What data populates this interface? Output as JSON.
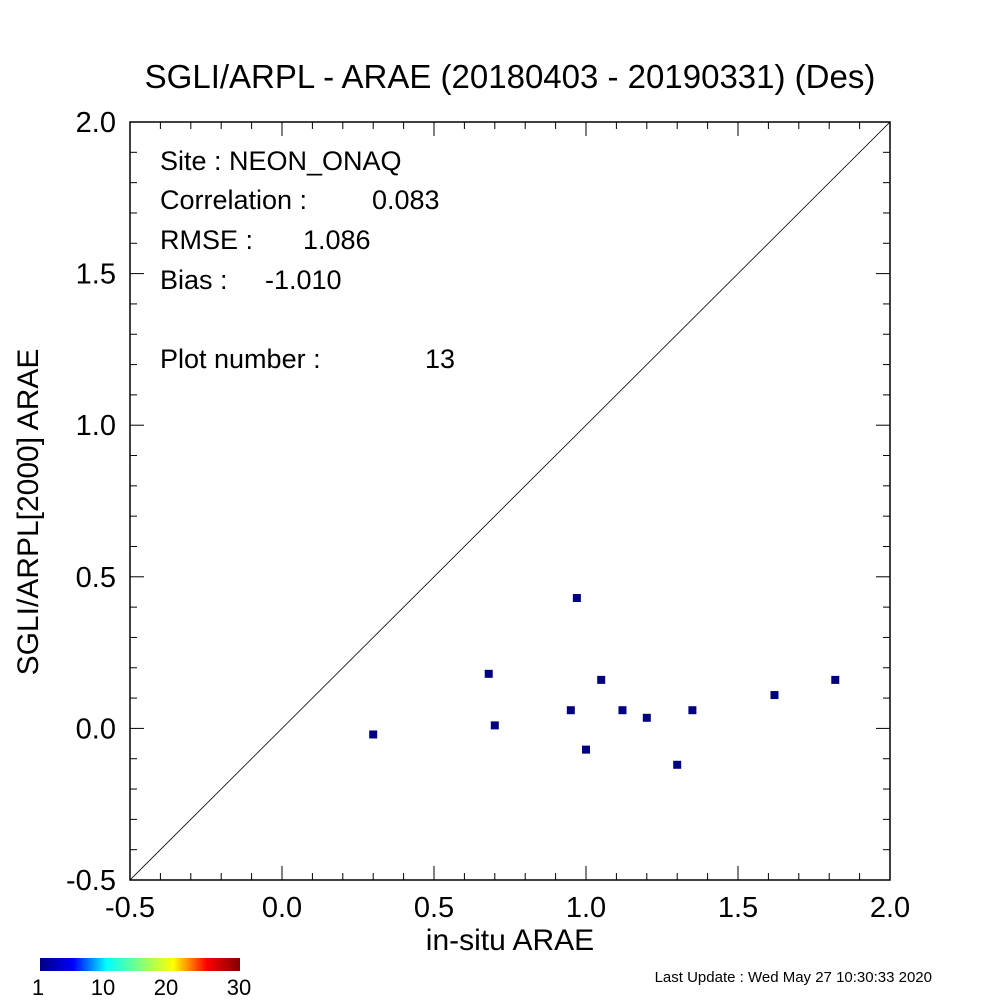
{
  "chart_data": {
    "type": "scatter",
    "title": "SGLI/ARPL - ARAE (20180403 - 20190331) (Des)",
    "xlabel": "in-situ ARAE",
    "ylabel": "SGLI/ARPL[2000]    ARAE",
    "xlim": [
      -0.5,
      2.0
    ],
    "ylim": [
      -0.5,
      2.0
    ],
    "xticks": [
      "-0.5",
      "0.0",
      "0.5",
      "1.0",
      "1.5",
      "2.0"
    ],
    "yticks": [
      "-0.5",
      "0.0",
      "0.5",
      "1.0",
      "1.5",
      "2.0"
    ],
    "reference_line": "1:1",
    "marker_color": "#00007f",
    "points": [
      {
        "x": 0.3,
        "y": -0.02
      },
      {
        "x": 0.68,
        "y": 0.18
      },
      {
        "x": 0.7,
        "y": 0.01
      },
      {
        "x": 0.95,
        "y": 0.06
      },
      {
        "x": 0.97,
        "y": 0.43
      },
      {
        "x": 1.0,
        "y": -0.07
      },
      {
        "x": 1.05,
        "y": 0.16
      },
      {
        "x": 1.12,
        "y": 0.06
      },
      {
        "x": 1.2,
        "y": 0.035
      },
      {
        "x": 1.3,
        "y": -0.12
      },
      {
        "x": 1.35,
        "y": 0.06
      },
      {
        "x": 1.62,
        "y": 0.11
      },
      {
        "x": 1.82,
        "y": 0.16
      }
    ],
    "stats": {
      "site": "Site : NEON_ONAQ",
      "correlation_label": "Correlation :",
      "correlation_value": "0.083",
      "rmse_label": "RMSE :",
      "rmse_value": "1.086",
      "bias_label": "Bias :",
      "bias_value": "-1.010",
      "plot_number_label": "Plot number :",
      "plot_number_value": "13"
    },
    "colorbar": {
      "ticks": [
        "1",
        "10",
        "20",
        "30"
      ],
      "colors": [
        "#00007f",
        "#0000ff",
        "#00ffff",
        "#7fff7f",
        "#ffff00",
        "#ff0000",
        "#7f0000"
      ]
    }
  },
  "footer": {
    "last_update": "Last Update : Wed May 27 10:30:33 2020"
  }
}
